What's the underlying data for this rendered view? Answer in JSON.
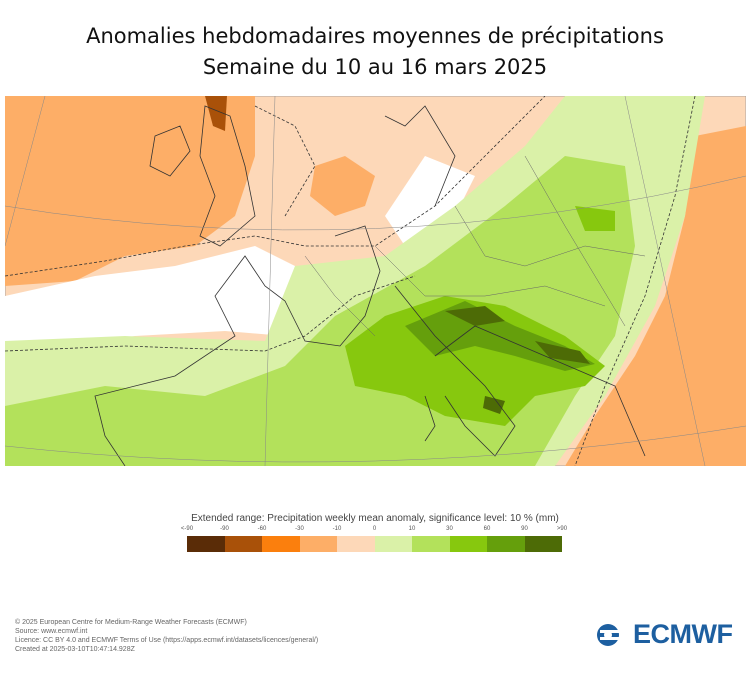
{
  "title": "Anomalies hebdomadaires moyennes de précipitations",
  "subtitle": "Semaine du 10 au 16 mars 2025",
  "legend": {
    "title": "Extended range: Precipitation weekly mean anomaly, significance level: 10 % (mm)",
    "ticks": [
      "<-90",
      "-90",
      "-60",
      "-30",
      "-10",
      "0",
      "10",
      "30",
      "60",
      "90",
      ">90"
    ],
    "colors": [
      "#5a2c07",
      "#a95109",
      "#fb7f0d",
      "#fdae67",
      "#fdd8b8",
      "#daf1a8",
      "#b3e15b",
      "#87c80e",
      "#659f0c",
      "#4d6b06"
    ]
  },
  "map": {
    "region": "Western and Central Europe",
    "colors": {
      "light_orange": "#fdd8b8",
      "orange": "#fdae67",
      "white": "#ffffff",
      "light_green": "#daf1a8",
      "green": "#b3e15b",
      "mid_green": "#87c80e",
      "dark_green": "#659f0c",
      "darkest_green": "#4d6b06"
    }
  },
  "footer": {
    "lines": [
      "© 2025 European Centre for Medium-Range Weather Forecasts (ECMWF)",
      "Source: www.ecmwf.int",
      "Licence: CC BY 4.0 and ECMWF Terms of Use (https://apps.ecmwf.int/datasets/licences/general/)",
      "Created at 2025-03-10T10:47:14.928Z"
    ]
  },
  "logo": {
    "text": "ECMWF"
  }
}
